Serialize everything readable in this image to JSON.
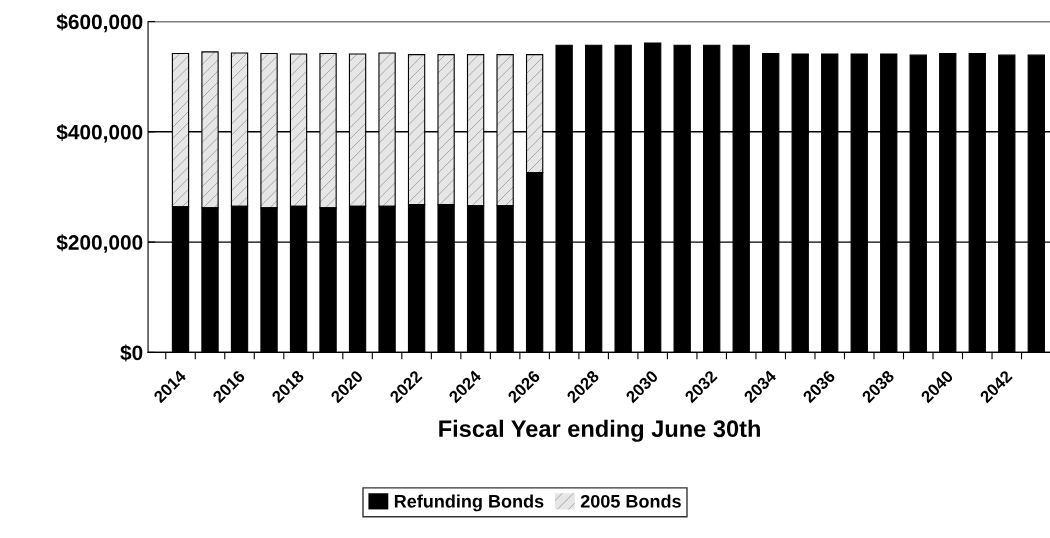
{
  "chart_data": {
    "type": "bar",
    "stacked": true,
    "xlabel": "Fiscal Year ending June 30th",
    "categories": [
      "2014",
      null,
      "2016",
      null,
      "2018",
      null,
      "2020",
      null,
      "2022",
      null,
      "2024",
      null,
      "2026",
      null,
      "2028",
      null,
      "2030",
      null,
      "2032",
      null,
      "2034",
      null,
      "2036",
      null,
      "2038",
      null,
      "2040",
      null,
      "2042",
      null
    ],
    "series": [
      {
        "name": "Refunding Bonds",
        "color": "#000000",
        "values": [
          264000,
          262000,
          265000,
          262000,
          265000,
          262000,
          265000,
          265000,
          268000,
          268000,
          266000,
          266000,
          326000,
          557000,
          557000,
          557000,
          561000,
          557000,
          557000,
          557000,
          542000,
          541000,
          541000,
          541000,
          541000,
          539000,
          542000,
          542000,
          539000,
          539000
        ]
      },
      {
        "name": "2005 Bonds",
        "color": "#e6e6e6",
        "values": [
          278000,
          283000,
          278000,
          280000,
          276000,
          280000,
          276000,
          278000,
          272000,
          272000,
          274000,
          274000,
          214000,
          null,
          null,
          null,
          null,
          null,
          null,
          null,
          null,
          null,
          null,
          null,
          null,
          null,
          null,
          null,
          null,
          null
        ]
      }
    ],
    "ylim": [
      0,
      600000
    ],
    "yticks": [
      {
        "value": 0,
        "label": "$0"
      },
      {
        "value": 200000,
        "label": "$200,000"
      },
      {
        "value": 400000,
        "label": "$400,000"
      },
      {
        "value": 600000,
        "label": "$600,000"
      }
    ],
    "grid": "y",
    "legend": "bottom"
  }
}
